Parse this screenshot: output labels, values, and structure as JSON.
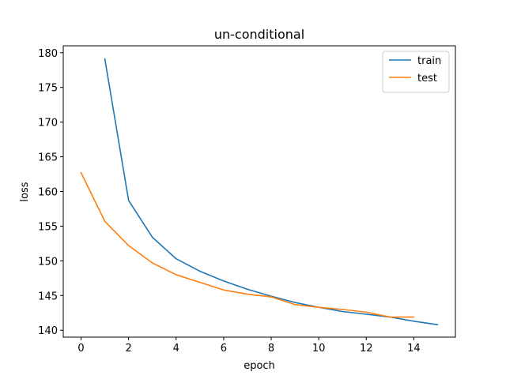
{
  "chart_data": {
    "type": "line",
    "title": "un-conditional",
    "xlabel": "epoch",
    "ylabel": "loss",
    "xlim": [
      -0.75,
      15.75
    ],
    "ylim": [
      139.0,
      181.0
    ],
    "xticks": [
      0,
      2,
      4,
      6,
      8,
      10,
      12,
      14
    ],
    "yticks": [
      140,
      145,
      150,
      155,
      160,
      165,
      170,
      175,
      180
    ],
    "grid": false,
    "legend_position": "top-right",
    "series": [
      {
        "name": "train",
        "color": "#1f77b4",
        "x": [
          1,
          2,
          3,
          4,
          5,
          6,
          7,
          8,
          9,
          10,
          11,
          12,
          13,
          14,
          15
        ],
        "y": [
          179.1,
          158.7,
          153.4,
          150.3,
          148.5,
          147.1,
          145.9,
          144.9,
          144.0,
          143.3,
          142.7,
          142.3,
          141.9,
          141.3,
          140.8
        ]
      },
      {
        "name": "test",
        "color": "#ff7f0e",
        "x": [
          0,
          1,
          2,
          3,
          4,
          5,
          6,
          7,
          8,
          9,
          10,
          11,
          12,
          13,
          14
        ],
        "y": [
          162.7,
          155.7,
          152.2,
          149.7,
          148.0,
          146.9,
          145.8,
          145.2,
          144.8,
          143.7,
          143.3,
          143.0,
          142.6,
          141.9,
          141.9
        ]
      }
    ]
  }
}
